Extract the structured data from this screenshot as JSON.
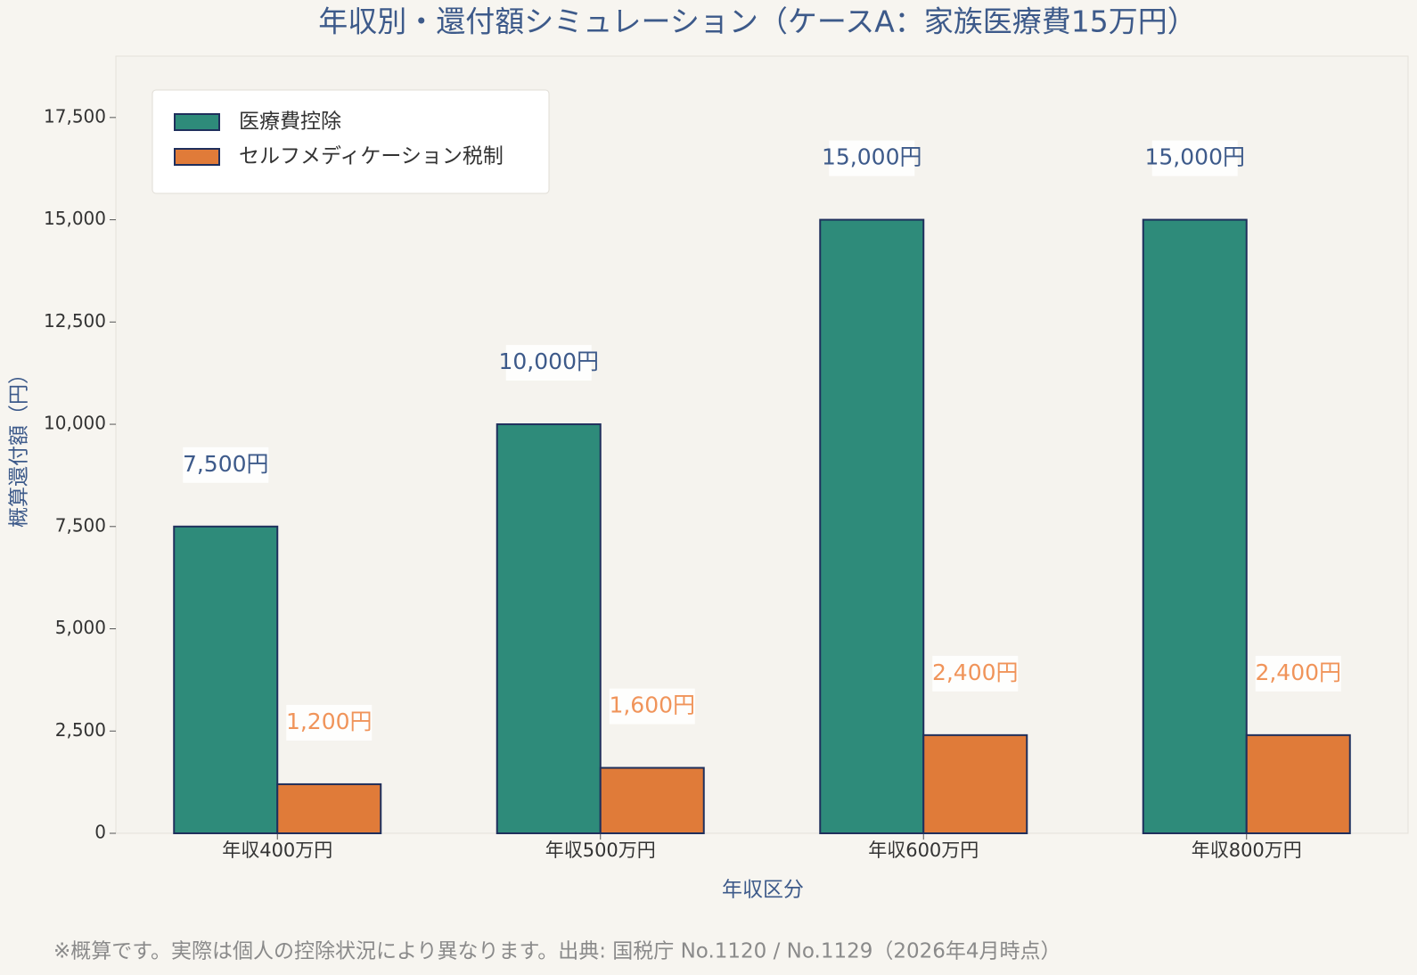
{
  "chart_data": {
    "type": "bar",
    "title": "年収別・還付額シミュレーション（ケースA：家族医療費15万円）",
    "x_label": "年収区分",
    "y_label": "概算還付額（円）",
    "categories": [
      "年収400万円",
      "年収500万円",
      "年収600万円",
      "年収800万円"
    ],
    "series": [
      {
        "name": "医療費控除",
        "color": "#2e8b7a",
        "values": [
          7500,
          10000,
          15000,
          15000
        ],
        "value_labels": [
          "7,500円",
          "10,000円",
          "15,000円",
          "15,000円"
        ]
      },
      {
        "name": "セルフメディケーション税制",
        "color": "#e07b39",
        "values": [
          1200,
          1600,
          2400,
          2400
        ],
        "value_labels": [
          "1,200円",
          "1,600円",
          "2,400円",
          "2,400円"
        ]
      }
    ],
    "ylim": [
      0,
      19000
    ],
    "yticks": [
      0,
      {
        "value": 2500,
        "label": "2,500"
      },
      {
        "value": 5000,
        "label": "5,000"
      },
      {
        "value": 7500,
        "label": "7,500"
      },
      {
        "value": 10000,
        "label": "10,000"
      },
      {
        "value": 12500,
        "label": "12,500"
      },
      {
        "value": 15000,
        "label": "15,000"
      },
      {
        "value": 17500,
        "label": "17,500"
      }
    ],
    "legend": "upper-left",
    "note": "※概算です。実際は個人の控除状況により異なります。出典: 国税庁 No.1120 / No.1129（2026年4月時点）"
  }
}
